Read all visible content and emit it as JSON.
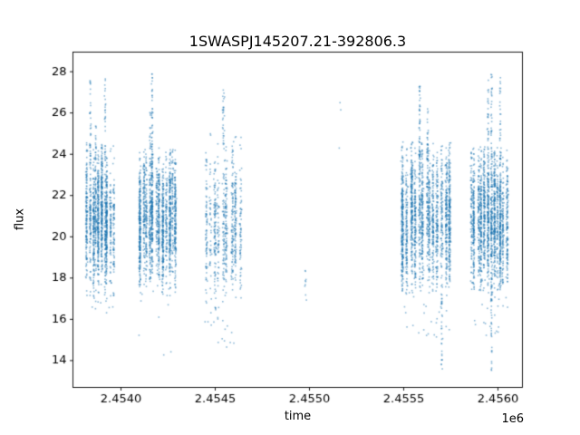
{
  "chart_data": {
    "type": "scatter",
    "title": "1SWASPJ145207.21-392806.3",
    "xlabel": "time",
    "ylabel": "flux",
    "x_offset_text": "1e6",
    "xlim": [
      2453745,
      2456130
    ],
    "ylim": [
      12.7,
      28.95
    ],
    "xticks": {
      "values": [
        2454000,
        2454500,
        2455000,
        2455500,
        2456000
      ],
      "labels": [
        "2.4540",
        "2.4545",
        "2.4550",
        "2.4555",
        "2.4560"
      ]
    },
    "yticks": {
      "values": [
        14,
        16,
        18,
        20,
        22,
        24,
        26,
        28
      ],
      "labels": [
        "14",
        "16",
        "18",
        "20",
        "22",
        "24",
        "26",
        "28"
      ]
    },
    "grid": false,
    "legend": "none",
    "colors": {
      "marker": "#1f77b4",
      "spine": "#000000",
      "text": "#000000",
      "background": "#ffffff"
    },
    "marker_alpha": 0.5,
    "marker_size_px": 1.6,
    "seed": 7,
    "clusters": [
      {
        "t_start": 2453815,
        "t_end": 2453965,
        "streaks": 10,
        "points": 1500,
        "flux_mean": 20.9,
        "flux_sd": 1.5,
        "flux_min": 16.6,
        "flux_max": 24.6,
        "high_tails": [
          {
            "frac": 0.1,
            "count": 35,
            "max": 28.2
          },
          {
            "frac": 0.68,
            "count": 30,
            "max": 27.9
          },
          {
            "frac": 0.32,
            "count": 15,
            "max": 26.0
          }
        ],
        "low_tails": [
          {
            "frac": 0.5,
            "count": 10,
            "min": 16.2,
            "spread": true
          }
        ]
      },
      {
        "t_start": 2454091,
        "t_end": 2454303,
        "streaks": 12,
        "points": 1900,
        "flux_mean": 20.8,
        "flux_sd": 1.5,
        "flux_min": 17.0,
        "flux_max": 24.3,
        "high_tails": [
          {
            "frac": 0.38,
            "count": 50,
            "max": 28.2
          },
          {
            "frac": 0.26,
            "count": 20,
            "max": 26.3
          }
        ],
        "low_tails": [
          {
            "frac": 0.75,
            "count": 7,
            "min": 13.9,
            "spread": true
          }
        ]
      },
      {
        "t_start": 2454442,
        "t_end": 2454639,
        "streaks": 9,
        "points": 750,
        "flux_mean": 20.6,
        "flux_sd": 1.7,
        "flux_min": 15.4,
        "flux_max": 25.0,
        "high_tails": [
          {
            "frac": 0.52,
            "count": 30,
            "max": 27.3
          }
        ],
        "low_tails": [
          {
            "frac": 0.4,
            "count": 14,
            "min": 14.2,
            "spread": true
          }
        ]
      },
      {
        "t_start": 2454975,
        "t_end": 2454992,
        "streaks": 1,
        "points": 9,
        "flux_mean": 17.7,
        "flux_sd": 0.55,
        "flux_min": 16.9,
        "flux_max": 18.6,
        "high_tails": [],
        "low_tails": []
      },
      {
        "t_start": 2455490,
        "t_end": 2455750,
        "streaks": 13,
        "points": 2100,
        "flux_mean": 20.9,
        "flux_sd": 1.6,
        "flux_min": 17.2,
        "flux_max": 24.6,
        "high_tails": [
          {
            "frac": 0.32,
            "count": 45,
            "max": 27.5
          },
          {
            "frac": 0.5,
            "count": 25,
            "max": 26.3
          }
        ],
        "low_tails": [
          {
            "frac": 0.35,
            "count": 30,
            "min": 15.0,
            "spread": true
          },
          {
            "frac": 0.85,
            "count": 35,
            "min": 13.5,
            "spread": false
          }
        ]
      },
      {
        "t_start": 2455851,
        "t_end": 2456053,
        "streaks": 12,
        "points": 1900,
        "flux_mean": 20.8,
        "flux_sd": 1.6,
        "flux_min": 17.4,
        "flux_max": 24.4,
        "high_tails": [
          {
            "frac": 0.45,
            "count": 30,
            "max": 27.6
          },
          {
            "frac": 0.6,
            "count": 35,
            "max": 28.3
          },
          {
            "frac": 0.8,
            "count": 30,
            "max": 27.9
          }
        ],
        "low_tails": [
          {
            "frac": 0.55,
            "count": 40,
            "min": 13.4,
            "spread": false
          },
          {
            "frac": 0.3,
            "count": 30,
            "min": 15.2,
            "spread": true
          }
        ]
      }
    ],
    "isolated_points": [
      [
        2455158,
        24.3
      ],
      [
        2455162,
        26.5
      ],
      [
        2455166,
        26.15
      ]
    ]
  }
}
